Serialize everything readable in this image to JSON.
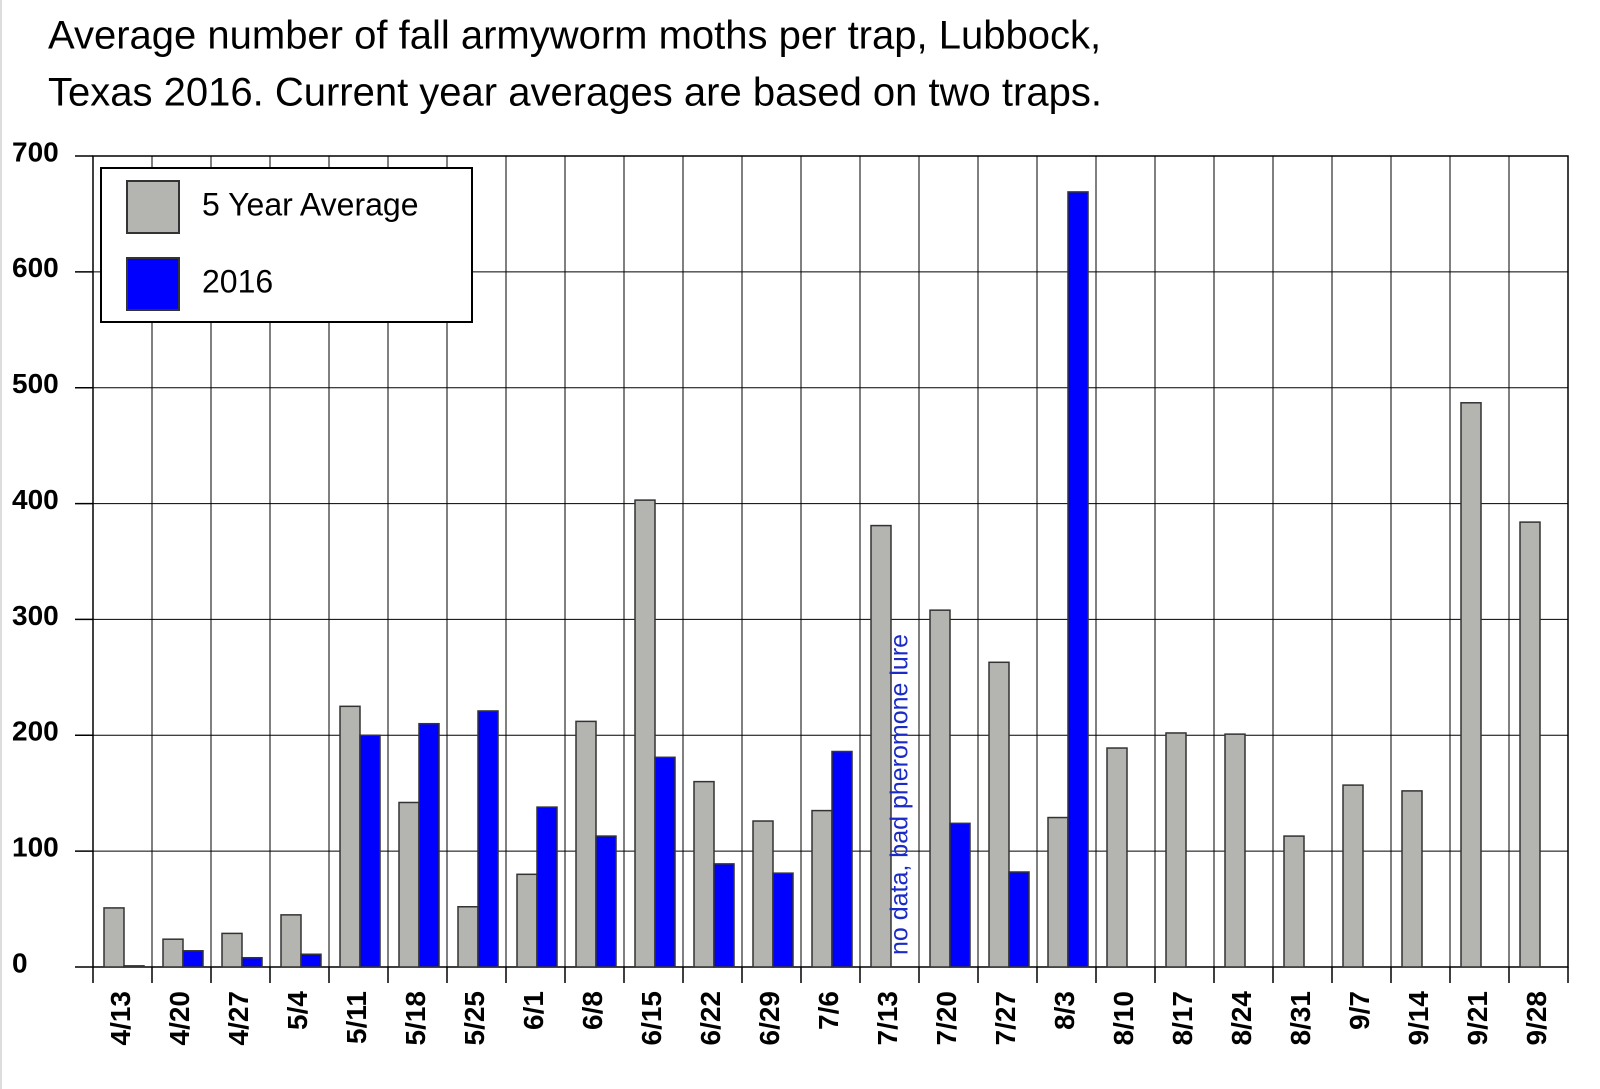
{
  "chart_data": {
    "type": "bar",
    "title": [
      "Average number of fall armyworm moths per trap, Lubbock,",
      "Texas 2016. Current year averages are based on two traps."
    ],
    "categories": [
      "4/13",
      "4/20",
      "4/27",
      "5/4",
      "5/11",
      "5/18",
      "5/25",
      "6/1",
      "6/8",
      "6/15",
      "6/22",
      "6/29",
      "7/6",
      "7/13",
      "7/20",
      "7/27",
      "8/3",
      "8/10",
      "8/17",
      "8/24",
      "8/31",
      "9/7",
      "9/14",
      "9/21",
      "9/28"
    ],
    "series": [
      {
        "name": "5 Year Average",
        "color": "#b4b4b0",
        "values": [
          51,
          24,
          29,
          45,
          225,
          142,
          52,
          80,
          212,
          403,
          160,
          126,
          135,
          381,
          308,
          263,
          129,
          189,
          202,
          201,
          113,
          157,
          152,
          487,
          384
        ]
      },
      {
        "name": "2016",
        "color": "#0000ff",
        "values": [
          1,
          14,
          8,
          11,
          200,
          210,
          221,
          138,
          113,
          181,
          89,
          81,
          186,
          null,
          124,
          82,
          669,
          null,
          null,
          null,
          null,
          null,
          null,
          null,
          null
        ]
      }
    ],
    "annotation": "no data, bad pheromone lure",
    "ylim": [
      0,
      700
    ],
    "yticks": [
      0,
      100,
      200,
      300,
      400,
      500,
      600,
      700
    ],
    "grid": true,
    "legend": "upper left"
  }
}
